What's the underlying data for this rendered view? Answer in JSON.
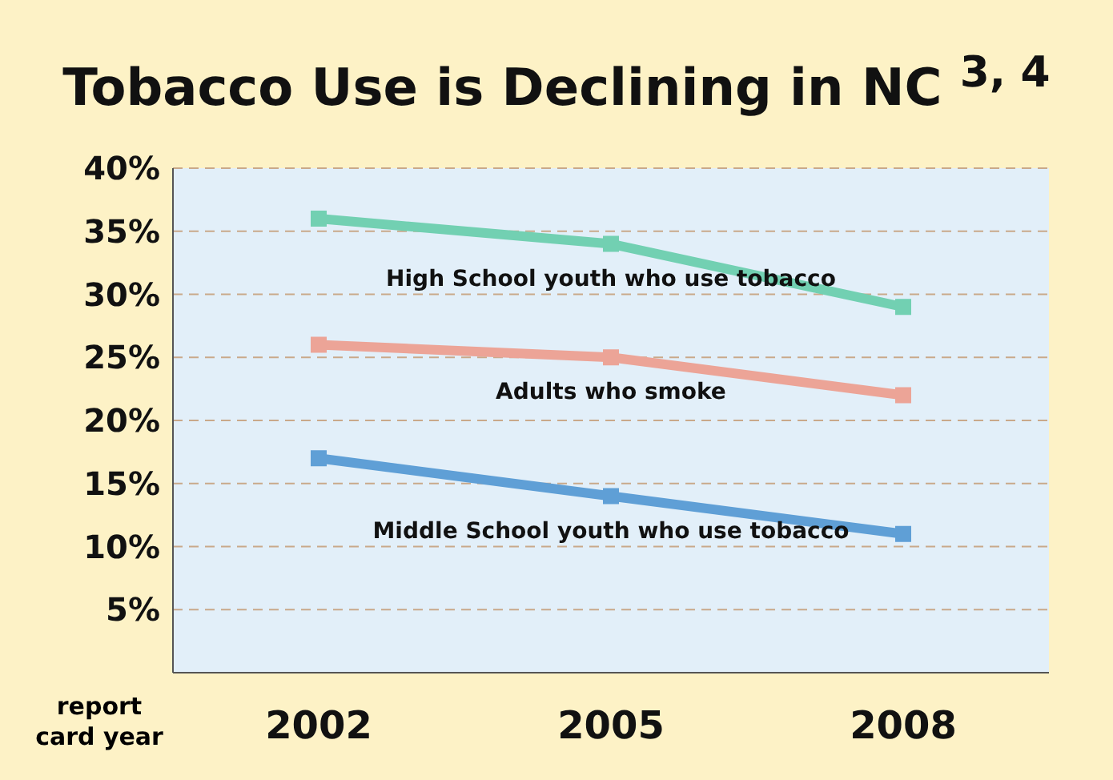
{
  "chart_data": {
    "type": "line",
    "title": "Tobacco Use is Declining in NC $^{3, 4}$",
    "xlabel": "report card year",
    "categories": [
      "2002",
      "2005",
      "2008"
    ],
    "series": [
      {
        "name": "High School youth who use tobacco",
        "color": "#72d0b2",
        "values": [
          36,
          34,
          29
        ]
      },
      {
        "name": "Adults who smoke",
        "color": "#eca497",
        "values": [
          26,
          25,
          22
        ]
      },
      {
        "name": "Middle School youth who use tobacco",
        "color": "#5f9fd6",
        "values": [
          17,
          14,
          11
        ]
      }
    ],
    "ylim": [
      0,
      40
    ],
    "yticks": [
      {
        "value": 0,
        "label": null
      },
      {
        "value": 5,
        "label": "5%"
      },
      {
        "value": 10,
        "label": "10%"
      },
      {
        "value": 15,
        "label": "15%"
      },
      {
        "value": 20,
        "label": "20%"
      },
      {
        "value": 25,
        "label": "25%"
      },
      {
        "value": 30,
        "label": "30%"
      },
      {
        "value": 35,
        "label": "35%"
      },
      {
        "value": 40,
        "label": "40%"
      }
    ],
    "grid": "y",
    "marker": "square",
    "line_style": "solid"
  }
}
